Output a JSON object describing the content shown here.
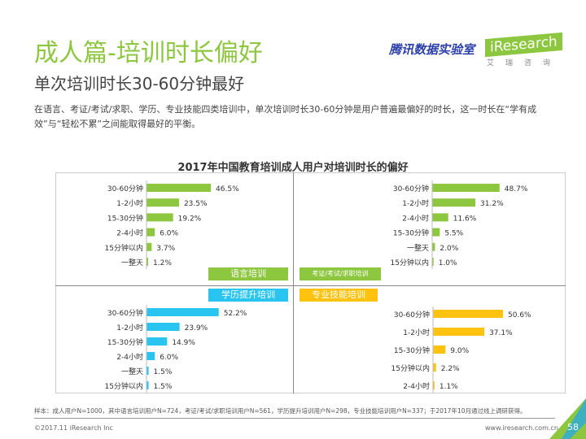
{
  "header": {
    "title": "成人篇-培训时长偏好",
    "subtitle": "单次培训时长30-60分钟最好",
    "description": "在语言、考证/考试/求职、学历、专业技能四类培训中，单次培训时长30-60分钟是用户普遍最偏好的时长，这一时长在“学有成效”与“轻松不累”之间能取得最好的平衡。",
    "logo_tencent": "腾讯数据实验室",
    "logo_iresearch": "iResearch",
    "logo_iresearch_cn": "艾瑞咨询"
  },
  "chart_data": [
    {
      "type": "bar",
      "orientation": "horizontal",
      "title": "2017年中国教育培训成人用户对培训时长的偏好",
      "panel": "语言培训",
      "color": "#8dc63f",
      "categories": [
        "30-60分钟",
        "1-2小时",
        "15-30分钟",
        "2-4小时",
        "15分钟以内",
        "一整天"
      ],
      "values": [
        46.5,
        23.5,
        19.2,
        6.0,
        3.7,
        1.2
      ],
      "labels": [
        "46.5%",
        "23.5%",
        "19.2%",
        "6.0%",
        "3.7%",
        "1.2%"
      ]
    },
    {
      "type": "bar",
      "orientation": "horizontal",
      "panel": "考证/考试/求职培训",
      "color": "#8dc63f",
      "categories": [
        "30-60分钟",
        "1-2小时",
        "2-4小时",
        "15-30分钟",
        "一整天",
        "15分钟以内"
      ],
      "values": [
        48.7,
        31.2,
        11.6,
        5.5,
        2.0,
        1.0
      ],
      "labels": [
        "48.7%",
        "31.2%",
        "11.6%",
        "5.5%",
        "2.0%",
        "1.0%"
      ]
    },
    {
      "type": "bar",
      "orientation": "horizontal",
      "panel": "学历提升培训",
      "color": "#29c5f0",
      "categories": [
        "30-60分钟",
        "1-2小时",
        "15-30分钟",
        "2-4小时",
        "一整天",
        "15分钟以内"
      ],
      "values": [
        52.2,
        23.9,
        14.9,
        6.0,
        1.5,
        1.5
      ],
      "labels": [
        "52.2%",
        "23.9%",
        "14.9%",
        "6.0%",
        "1.5%",
        "1.5%"
      ]
    },
    {
      "type": "bar",
      "orientation": "horizontal",
      "panel": "专业技能培训",
      "color": "#ffc20e",
      "categories": [
        "30-60分钟",
        "1-2小时",
        "15-30分钟",
        "15分钟以内",
        "2-4小时"
      ],
      "values": [
        50.6,
        37.1,
        9.0,
        2.2,
        1.1
      ],
      "labels": [
        "50.6%",
        "37.1%",
        "9.0%",
        "2.2%",
        "1.1%"
      ]
    }
  ],
  "footer": {
    "note": "样本：成人用户N=1000，其中语言培训用户N=724，考证/考试/求职培训用户N=561，学历提升培训用户N=298，专业技能培训用户N=337；于2017年10月通过线上调研获得。",
    "copyright": "©2017.11 iResearch Inc",
    "url": "www.iresearch.com.cn",
    "page": "58"
  }
}
